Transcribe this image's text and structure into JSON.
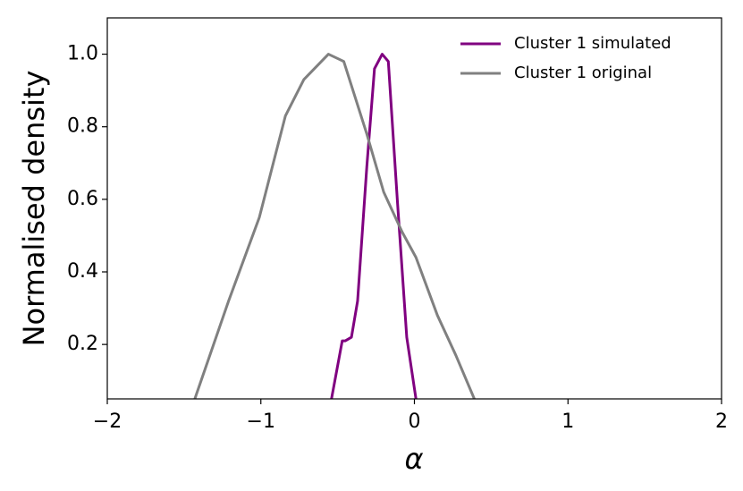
{
  "chart_data": {
    "type": "line",
    "x_label": "α",
    "y_label": "Normalised density",
    "xlim": [
      -2,
      2
    ],
    "ylim": [
      0.05,
      1.1
    ],
    "xticks": [
      {
        "value": -2,
        "label": "−2"
      },
      {
        "value": -1,
        "label": "−1"
      },
      0,
      1,
      2
    ],
    "yticks": [
      0.2,
      0.4,
      0.6,
      0.8,
      {
        "value": 1,
        "label": "1.0"
      }
    ],
    "legend": "upper right",
    "series": [
      {
        "name": "Cluster 1 simulated",
        "color": "#800080",
        "x": [
          -0.54,
          -0.47,
          -0.45,
          -0.41,
          -0.37,
          -0.31,
          -0.26,
          -0.21,
          -0.17,
          -0.11,
          -0.05,
          0.01
        ],
        "values": [
          0.05,
          0.21,
          0.21,
          0.22,
          0.32,
          0.69,
          0.96,
          1.0,
          0.98,
          0.59,
          0.22,
          0.05
        ]
      },
      {
        "name": "Cluster 1 original",
        "color": "#808080",
        "x": [
          -1.43,
          -1.21,
          -1.01,
          -0.84,
          -0.72,
          -0.56,
          -0.46,
          -0.31,
          -0.2,
          -0.08,
          0.01,
          0.15,
          0.27,
          0.39
        ],
        "values": [
          0.05,
          0.32,
          0.55,
          0.83,
          0.93,
          1.0,
          0.98,
          0.78,
          0.62,
          0.51,
          0.44,
          0.28,
          0.17,
          0.05
        ]
      }
    ]
  }
}
